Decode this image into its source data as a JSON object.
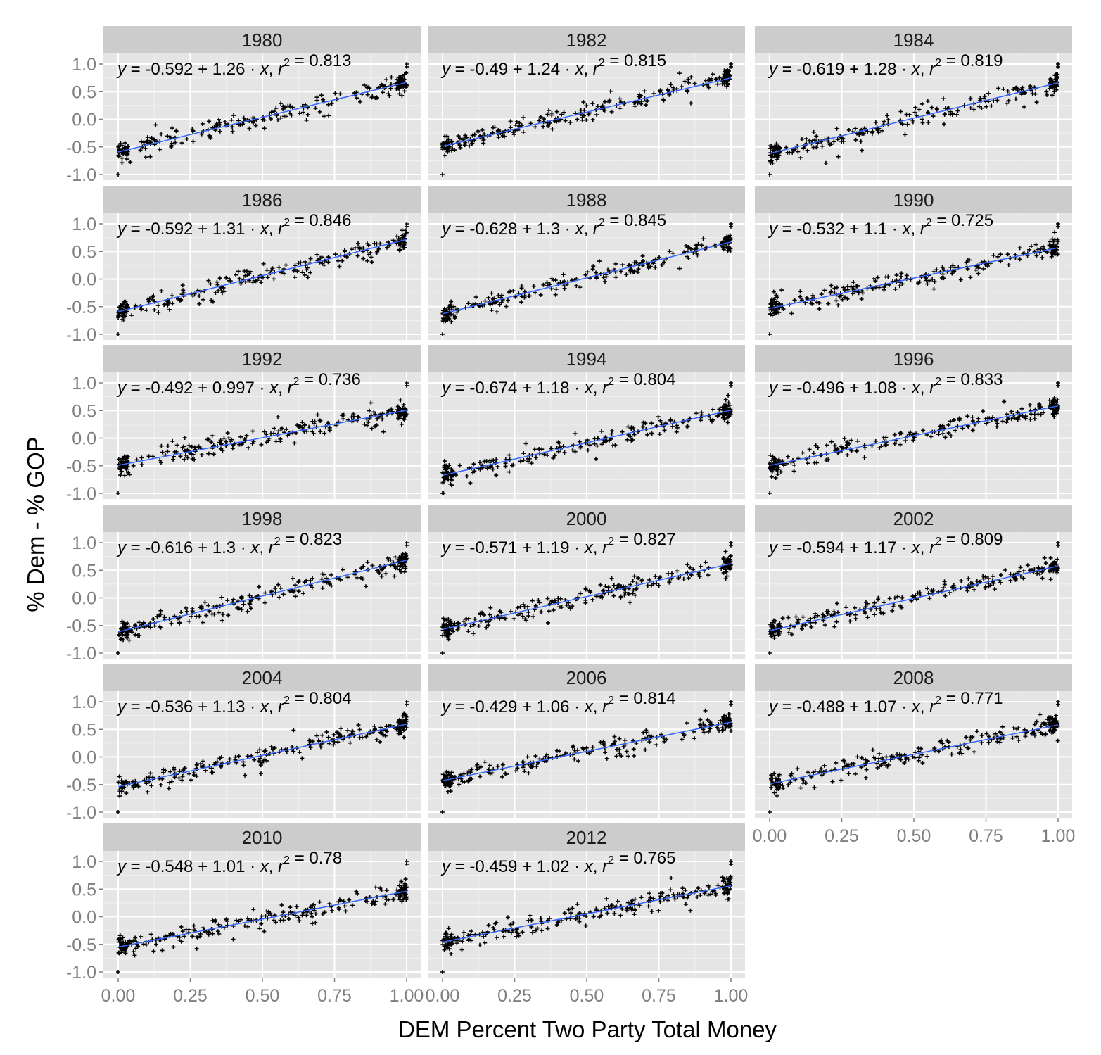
{
  "chart_data": {
    "type": "scatter",
    "facet_layout": {
      "columns": 3,
      "rows": 6
    },
    "xlabel": "DEM Percent Two Party Total Money",
    "ylabel": "% Dem - % GOP",
    "xlim": [
      0,
      1
    ],
    "ylim": [
      -1,
      1
    ],
    "x_ticks": [
      0,
      0.25,
      0.5,
      0.75,
      1
    ],
    "x_tick_labels": [
      "0.00",
      "0.25",
      "0.50",
      "0.75",
      "1.00"
    ],
    "y_ticks": [
      -1,
      -0.5,
      0,
      0.5,
      1
    ],
    "y_tick_labels": [
      "-1.0",
      "-0.5",
      "0.0",
      "0.5",
      "1.0"
    ],
    "grid": true,
    "point_color": "#000000",
    "fit_color": "#3366ff",
    "panel_background": "#e5e5e5",
    "strip_background": "#cccccc",
    "eq_labels": {
      "y": "y",
      "x": "x",
      "r": "r",
      "r_power": "2"
    },
    "panels": [
      {
        "label": "1980",
        "intercept": -0.592,
        "slope": 1.26,
        "r2": 0.813,
        "intercept_text": "-0.592",
        "slope_text": "1.26",
        "r2_text": "0.813"
      },
      {
        "label": "1982",
        "intercept": -0.49,
        "slope": 1.24,
        "r2": 0.815,
        "intercept_text": "-0.49",
        "slope_text": "1.24",
        "r2_text": "0.815"
      },
      {
        "label": "1984",
        "intercept": -0.619,
        "slope": 1.28,
        "r2": 0.819,
        "intercept_text": "-0.619",
        "slope_text": "1.28",
        "r2_text": "0.819"
      },
      {
        "label": "1986",
        "intercept": -0.592,
        "slope": 1.31,
        "r2": 0.846,
        "intercept_text": "-0.592",
        "slope_text": "1.31",
        "r2_text": "0.846"
      },
      {
        "label": "1988",
        "intercept": -0.628,
        "slope": 1.3,
        "r2": 0.845,
        "intercept_text": "-0.628",
        "slope_text": "1.3",
        "r2_text": "0.845"
      },
      {
        "label": "1990",
        "intercept": -0.532,
        "slope": 1.1,
        "r2": 0.725,
        "intercept_text": "-0.532",
        "slope_text": "1.1",
        "r2_text": "0.725"
      },
      {
        "label": "1992",
        "intercept": -0.492,
        "slope": 0.997,
        "r2": 0.736,
        "intercept_text": "-0.492",
        "slope_text": "0.997",
        "r2_text": "0.736"
      },
      {
        "label": "1994",
        "intercept": -0.674,
        "slope": 1.18,
        "r2": 0.804,
        "intercept_text": "-0.674",
        "slope_text": "1.18",
        "r2_text": "0.804"
      },
      {
        "label": "1996",
        "intercept": -0.496,
        "slope": 1.08,
        "r2": 0.833,
        "intercept_text": "-0.496",
        "slope_text": "1.08",
        "r2_text": "0.833"
      },
      {
        "label": "1998",
        "intercept": -0.616,
        "slope": 1.3,
        "r2": 0.823,
        "intercept_text": "-0.616",
        "slope_text": "1.3",
        "r2_text": "0.823"
      },
      {
        "label": "2000",
        "intercept": -0.571,
        "slope": 1.19,
        "r2": 0.827,
        "intercept_text": "-0.571",
        "slope_text": "1.19",
        "r2_text": "0.827"
      },
      {
        "label": "2002",
        "intercept": -0.594,
        "slope": 1.17,
        "r2": 0.809,
        "intercept_text": "-0.594",
        "slope_text": "1.17",
        "r2_text": "0.809"
      },
      {
        "label": "2004",
        "intercept": -0.536,
        "slope": 1.13,
        "r2": 0.804,
        "intercept_text": "-0.536",
        "slope_text": "1.13",
        "r2_text": "0.804"
      },
      {
        "label": "2006",
        "intercept": -0.429,
        "slope": 1.06,
        "r2": 0.814,
        "intercept_text": "-0.429",
        "slope_text": "1.06",
        "r2_text": "0.814"
      },
      {
        "label": "2008",
        "intercept": -0.488,
        "slope": 1.07,
        "r2": 0.771,
        "intercept_text": "-0.488",
        "slope_text": "1.07",
        "r2_text": "0.771"
      },
      {
        "label": "2010",
        "intercept": -0.548,
        "slope": 1.01,
        "r2": 0.78,
        "intercept_text": "-0.548",
        "slope_text": "1.01",
        "r2_text": "0.78"
      },
      {
        "label": "2012",
        "intercept": -0.459,
        "slope": 1.02,
        "r2": 0.765,
        "intercept_text": "-0.459",
        "slope_text": "1.02",
        "r2_text": "0.765"
      }
    ]
  }
}
